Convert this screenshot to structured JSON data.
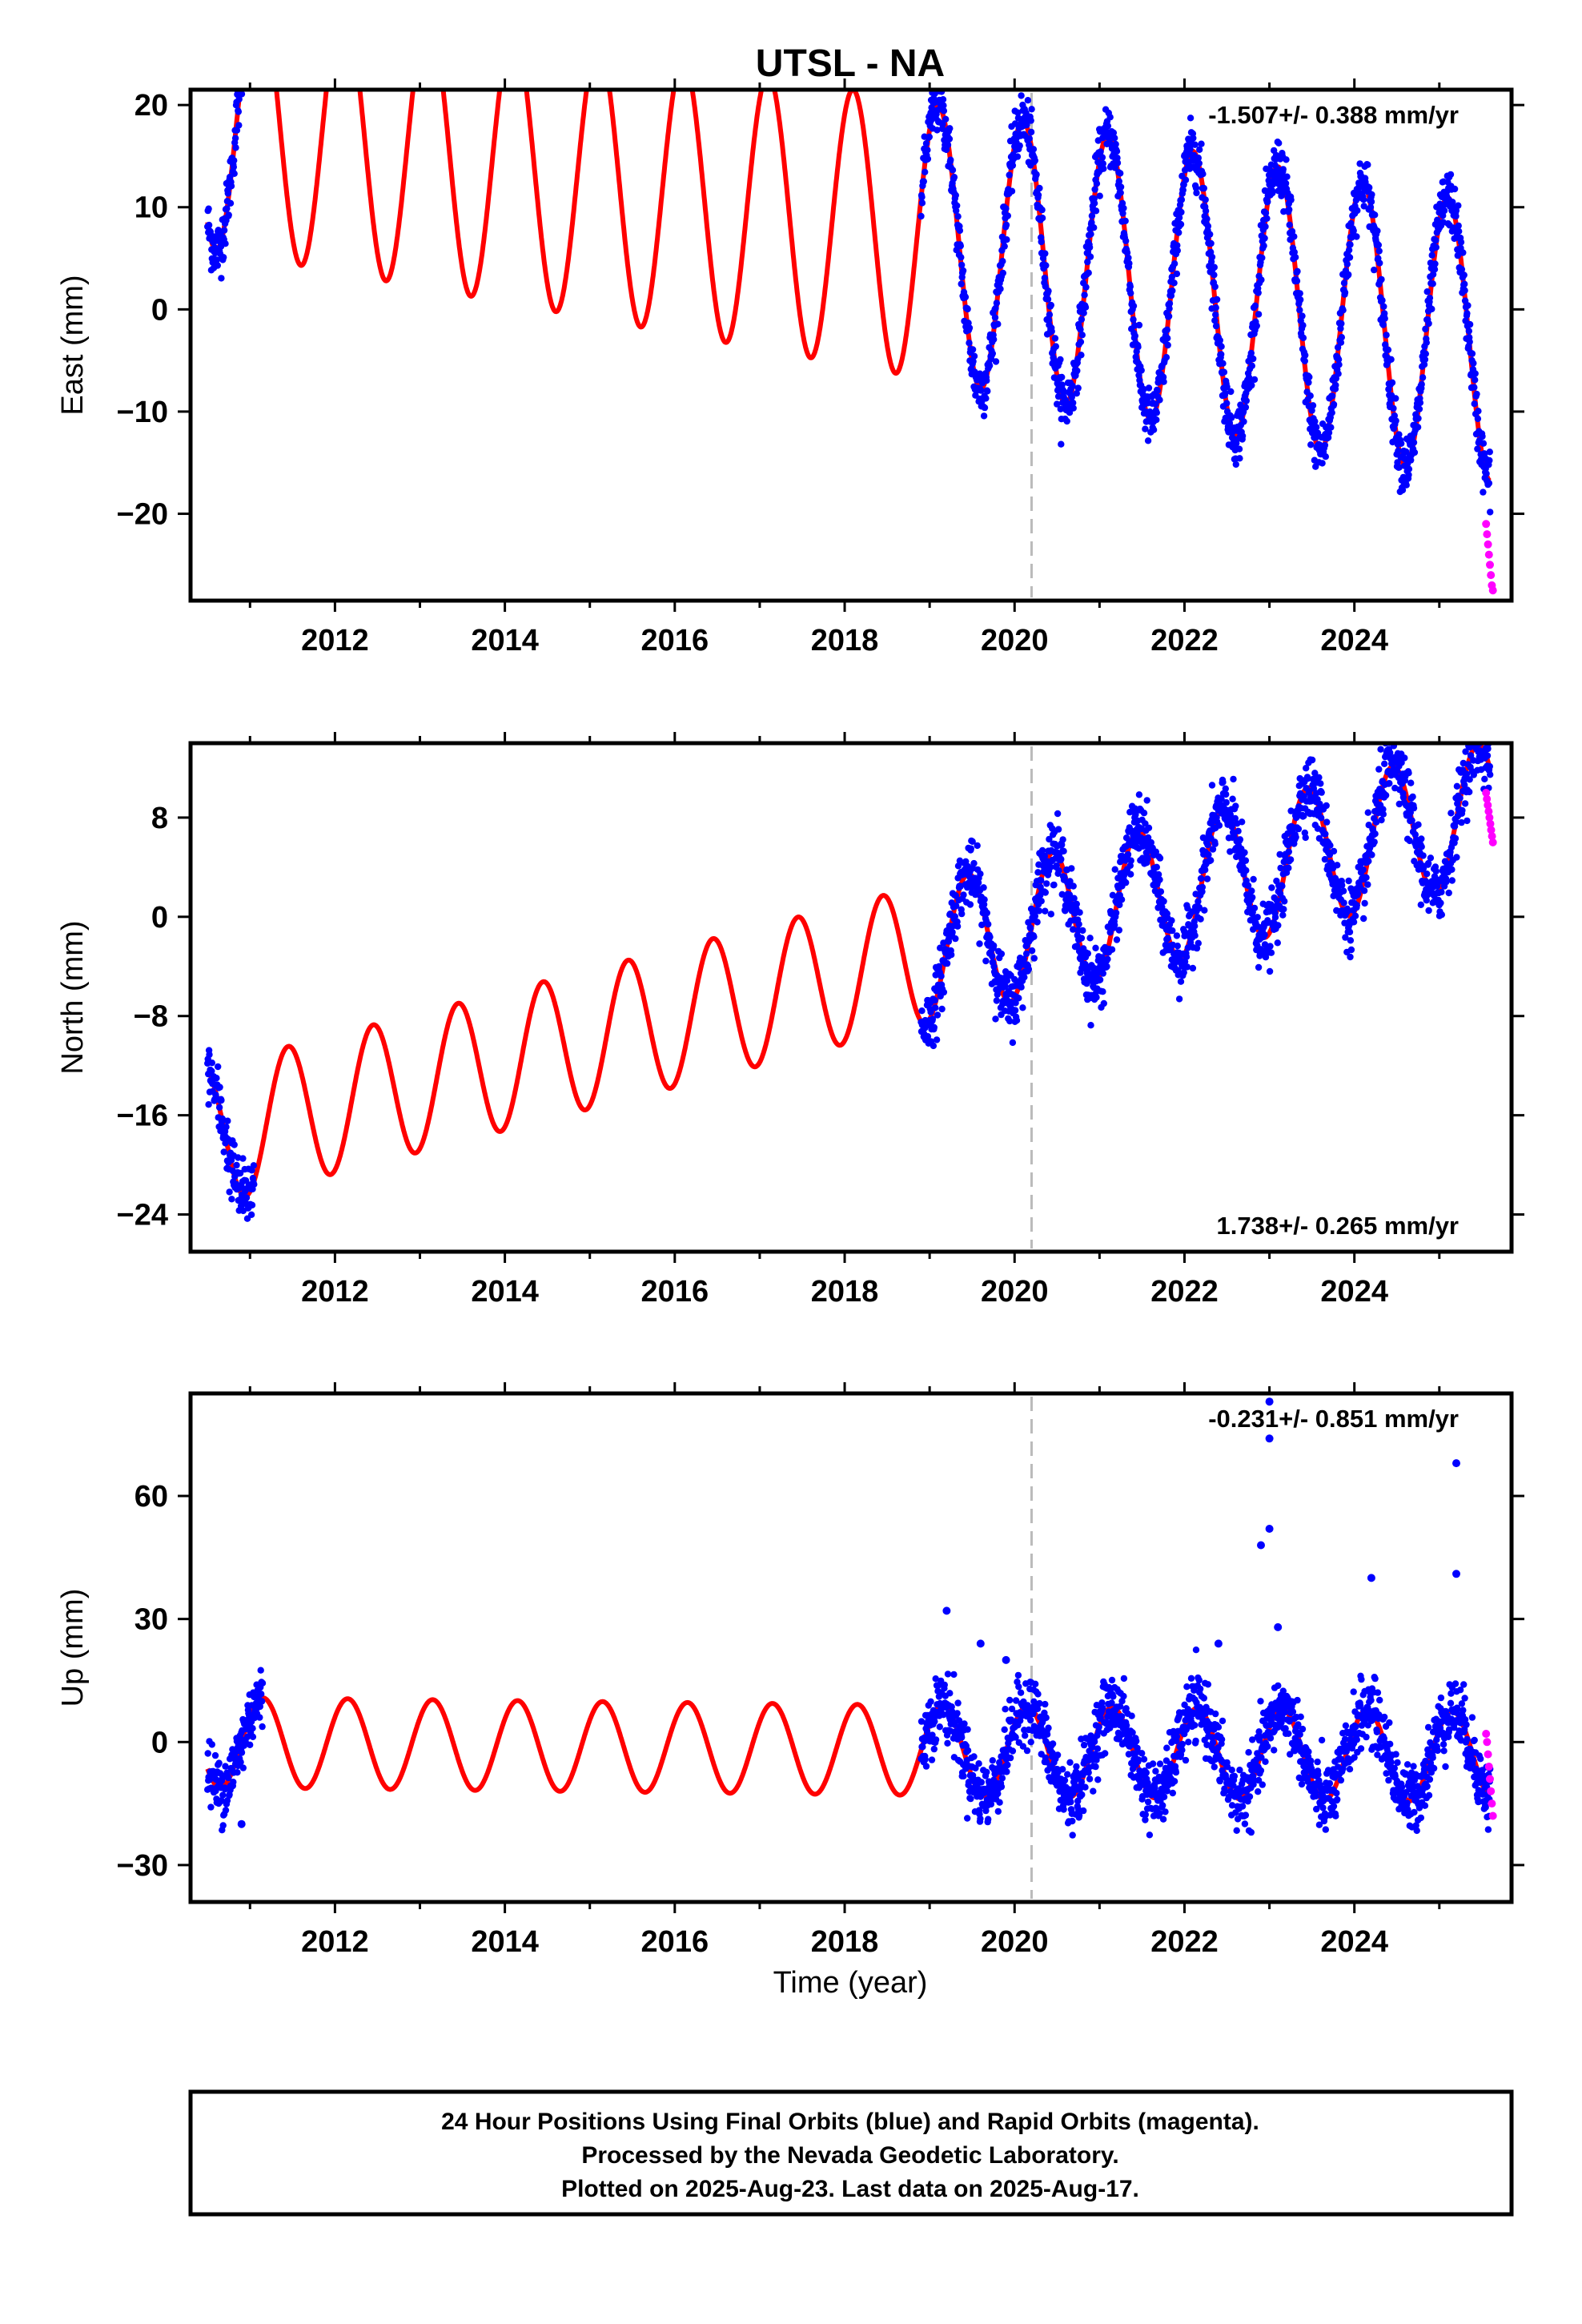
{
  "title": "UTSL - NA",
  "xlabel": "Time (year)",
  "footer": {
    "line1": "24 Hour Positions Using Final Orbits (blue) and Rapid Orbits (magenta).",
    "line2": "Processed by the Nevada Geodetic Laboratory.",
    "line3": "Plotted on 2025-Aug-23. Last data on 2025-Aug-17."
  },
  "colors": {
    "final_orbits": "#0000ff",
    "rapid_orbits": "#ff00ff",
    "model": "#ff0000",
    "event_line": "#bbbbbb"
  },
  "chart_data": [
    {
      "type": "scatter",
      "name": "east",
      "ylabel": "East (mm)",
      "rate_text": "-1.507+/- 0.388 mm/yr",
      "rate_position": "top-right",
      "xlim": [
        2010.3,
        2025.85
      ],
      "ylim": [
        -28.5,
        21.5
      ],
      "xticks": [
        2012,
        2014,
        2016,
        2018,
        2020,
        2022,
        2024
      ],
      "yticks": [
        -20,
        -10,
        0,
        10,
        20
      ],
      "event_line_x": 2020.2,
      "model": {
        "offset": 6.8,
        "slope": -1.507,
        "amplitude": 13.5,
        "phase_peak": 0.1,
        "start": 2010.5,
        "end": 2025.6
      },
      "final_segments": [
        [
          2010.5,
          2011.15
        ],
        [
          2018.9,
          2025.6
        ]
      ],
      "final_scatter_mm": 1.4,
      "rapid": {
        "start": 2025.55,
        "end": 2025.63,
        "values": [
          -21,
          -22,
          -23,
          -24,
          -25,
          -26,
          -27,
          -27.5
        ]
      }
    },
    {
      "type": "scatter",
      "name": "north",
      "ylabel": "North (mm)",
      "rate_text": "1.738+/- 0.265 mm/yr",
      "rate_position": "bottom-right",
      "xlim": [
        2010.3,
        2025.85
      ],
      "ylim": [
        -27,
        14
      ],
      "xticks": [
        2012,
        2014,
        2016,
        2018,
        2020,
        2022,
        2024
      ],
      "yticks": [
        -24,
        -16,
        -8,
        0,
        8
      ],
      "event_line_x": 2020.2,
      "model": {
        "offset": -3.1,
        "slope": 1.738,
        "amplitude": 5.6,
        "phase_peak": 0.45,
        "start": 2010.5,
        "end": 2025.6
      },
      "final_segments": [
        [
          2010.5,
          2011.05
        ],
        [
          2018.9,
          2025.6
        ]
      ],
      "final_scatter_mm": 1.3,
      "rapid": {
        "start": 2025.55,
        "end": 2025.63,
        "values": [
          10,
          9.5,
          9,
          8.5,
          8,
          7.5,
          7,
          6.5,
          6
        ]
      }
    },
    {
      "type": "scatter",
      "name": "up",
      "ylabel": "Up (mm)",
      "rate_text": "-0.231+/- 0.851 mm/yr",
      "rate_position": "top-right",
      "xlim": [
        2010.3,
        2025.85
      ],
      "ylim": [
        -39,
        85
      ],
      "xticks": [
        2012,
        2014,
        2016,
        2018,
        2020,
        2022,
        2024
      ],
      "yticks": [
        -30,
        0,
        30,
        60
      ],
      "event_line_x": 2020.2,
      "model": {
        "offset": -2.0,
        "slope": -0.231,
        "amplitude": 11.0,
        "phase_peak": 0.15,
        "start": 2010.5,
        "end": 2025.6
      },
      "final_segments": [
        [
          2010.5,
          2011.15
        ],
        [
          2018.9,
          2025.6
        ]
      ],
      "final_scatter_mm": 4.0,
      "outliers": [
        [
          2023.0,
          83
        ],
        [
          2023.0,
          74
        ],
        [
          2025.2,
          68
        ],
        [
          2023.0,
          52
        ],
        [
          2022.9,
          48
        ],
        [
          2024.2,
          40
        ],
        [
          2025.2,
          41
        ],
        [
          2019.2,
          32
        ],
        [
          2019.6,
          24
        ],
        [
          2019.9,
          20
        ],
        [
          2023.1,
          28
        ],
        [
          2022.4,
          24
        ],
        [
          2010.9,
          -20
        ]
      ],
      "rapid": {
        "start": 2025.55,
        "end": 2025.63,
        "values": [
          2,
          0,
          -3,
          -6,
          -9,
          -12,
          -15,
          -18
        ]
      }
    }
  ]
}
